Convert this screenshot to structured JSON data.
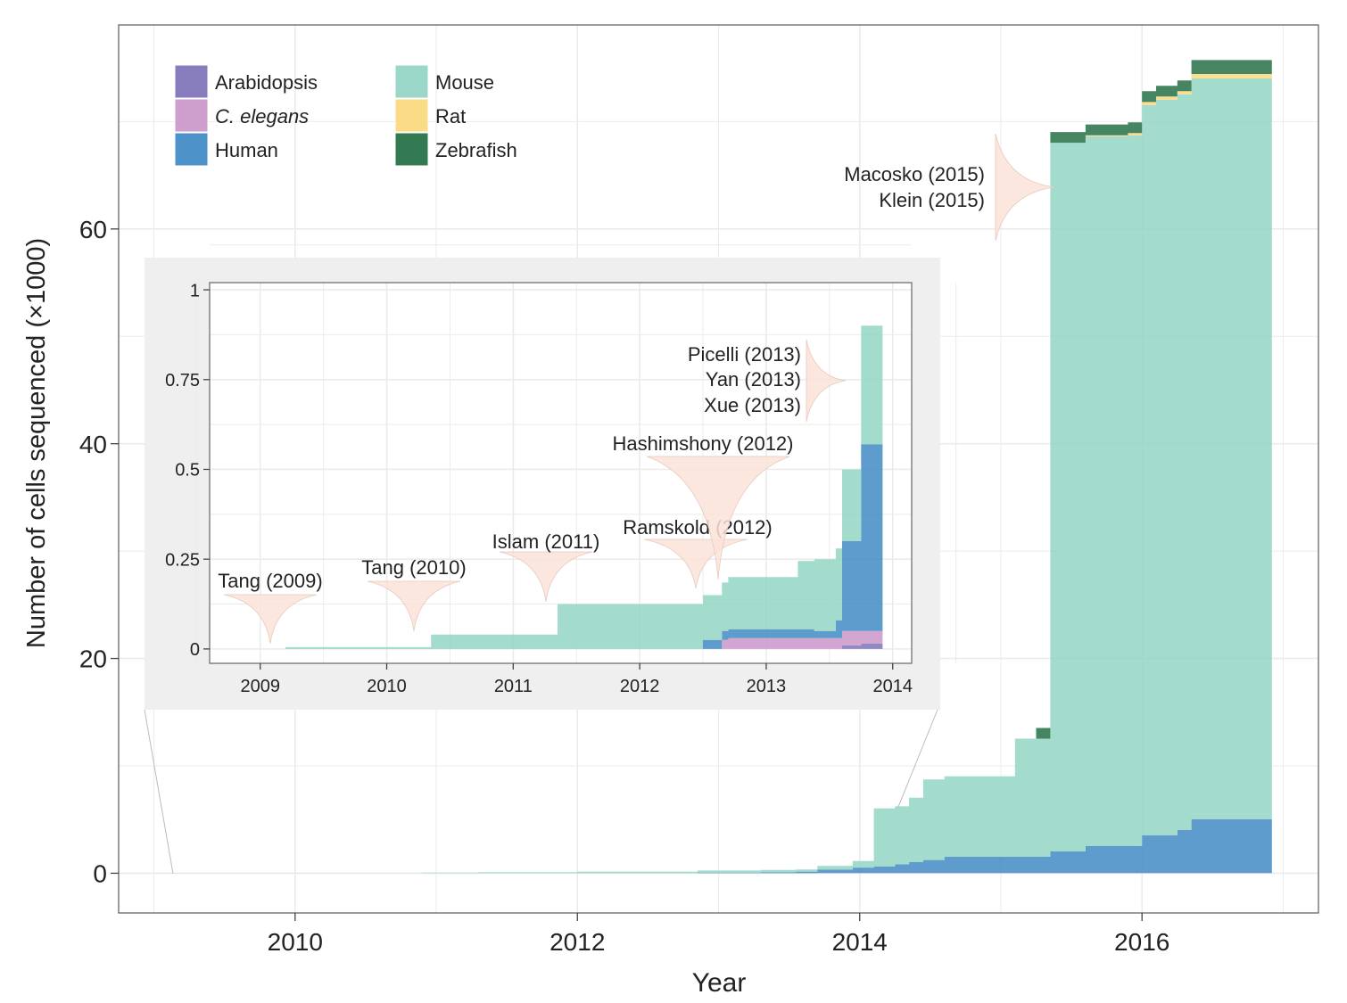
{
  "chart_data": [
    {
      "type": "area",
      "stacked": true,
      "xlabel": "Year",
      "ylabel": "Number of cells sequenced (×1000)",
      "xlim": [
        2008.75,
        2017.25
      ],
      "ylim": [
        -3.7,
        79
      ],
      "xticks": [
        2010,
        2012,
        2014,
        2016
      ],
      "xtick_labels": [
        "2010",
        "2012",
        "2014",
        "2016"
      ],
      "yticks": [
        0,
        20,
        40,
        60
      ],
      "ytick_labels": [
        "0",
        "20",
        "40",
        "60"
      ],
      "grid": true,
      "legend_position": "top-left",
      "step": true,
      "x": [
        2009.0,
        2009.6,
        2010.0,
        2010.4,
        2010.9,
        2011.3,
        2011.7,
        2012.0,
        2012.5,
        2012.85,
        2013.0,
        2013.3,
        2013.55,
        2013.7,
        2013.95,
        2014.1,
        2014.25,
        2014.35,
        2014.45,
        2014.6,
        2014.75,
        2015.0,
        2015.1,
        2015.25,
        2015.35,
        2015.6,
        2015.75,
        2015.9,
        2016.0,
        2016.1,
        2016.25,
        2016.35,
        2016.92
      ],
      "series": [
        {
          "name": "Arabidopsis",
          "color": "#7b6fb5",
          "values": [
            0,
            0,
            0,
            0,
            0,
            0,
            0,
            0,
            0,
            0,
            0,
            0,
            0,
            0.01,
            0.01,
            0.01,
            0.01,
            0.01,
            0.01,
            0.01,
            0.01,
            0.01,
            0.01,
            0.01,
            0.01,
            0.01,
            0.01,
            0.01,
            0.01,
            0.01,
            0.01,
            0.01,
            0.01
          ]
        },
        {
          "name": "C. elegans",
          "color": "#c993c8",
          "values": [
            0,
            0,
            0,
            0,
            0,
            0,
            0,
            0,
            0,
            0,
            0,
            0,
            0,
            0.02,
            0.02,
            0.02,
            0.02,
            0.02,
            0.02,
            0.02,
            0.02,
            0.02,
            0.02,
            0.02,
            0.02,
            0.02,
            0.02,
            0.02,
            0.02,
            0.02,
            0.02,
            0.02,
            0.02
          ]
        },
        {
          "name": "Human",
          "color": "#3a86c2",
          "values": [
            0,
            0,
            0,
            0,
            0,
            0,
            0,
            0,
            0,
            0.05,
            0.05,
            0.1,
            0.15,
            0.3,
            0.5,
            0.6,
            0.8,
            1.0,
            1.2,
            1.5,
            1.5,
            1.5,
            1.5,
            1.5,
            2.0,
            2.5,
            2.5,
            2.5,
            3.5,
            3.5,
            4.0,
            5.0,
            5.0
          ]
        },
        {
          "name": "Mouse",
          "color": "#8fd3c2",
          "values": [
            0.01,
            0.01,
            0.02,
            0.02,
            0.05,
            0.1,
            0.1,
            0.15,
            0.15,
            0.2,
            0.2,
            0.2,
            0.2,
            0.35,
            0.6,
            5.4,
            5.4,
            6.0,
            7.5,
            7.5,
            7.5,
            7.5,
            11.0,
            11.0,
            66.0,
            66.1,
            66.1,
            66.2,
            68.0,
            68.5,
            68.5,
            69.0,
            69.0
          ]
        },
        {
          "name": "Rat",
          "color": "#f9d779",
          "values": [
            0,
            0,
            0,
            0,
            0,
            0,
            0,
            0,
            0,
            0,
            0,
            0,
            0,
            0,
            0,
            0,
            0,
            0,
            0,
            0,
            0,
            0,
            0,
            0,
            0,
            0.1,
            0.1,
            0.2,
            0.3,
            0.3,
            0.3,
            0.4,
            0.4
          ]
        },
        {
          "name": "Zebrafish",
          "color": "#1d6a3e",
          "values": [
            0,
            0,
            0,
            0,
            0,
            0,
            0,
            0,
            0,
            0,
            0,
            0,
            0,
            0,
            0,
            0,
            0,
            0,
            0,
            0,
            0,
            0,
            0,
            1.0,
            1.0,
            1.0,
            1.0,
            1.0,
            1.0,
            1.0,
            1.0,
            1.3,
            1.3
          ]
        }
      ],
      "annotations": [
        {
          "label": "Macosko (2015)",
          "x": 2015.3
        },
        {
          "label": "Klein (2015)",
          "x": 2015.3
        }
      ]
    },
    {
      "type": "area",
      "stacked": true,
      "inset": true,
      "xlim": [
        2008.6,
        2014.15
      ],
      "ylim": [
        -0.04,
        1.02
      ],
      "xticks": [
        2009,
        2010,
        2011,
        2012,
        2013,
        2014
      ],
      "xtick_labels": [
        "2009",
        "2010",
        "2011",
        "2012",
        "2013",
        "2014"
      ],
      "yticks": [
        0,
        0.25,
        0.5,
        0.75,
        1
      ],
      "ytick_labels": [
        "0",
        "0.25",
        "0.5",
        "0.75",
        "1"
      ],
      "grid": true,
      "step": true,
      "x": [
        2009.2,
        2010.25,
        2010.35,
        2011.25,
        2011.35,
        2012.4,
        2012.5,
        2012.65,
        2012.7,
        2013.15,
        2013.25,
        2013.38,
        2013.5,
        2013.55,
        2013.6,
        2013.75,
        2013.92
      ],
      "series": [
        {
          "name": "Arabidopsis",
          "values": [
            0,
            0,
            0,
            0,
            0,
            0,
            0,
            0,
            0,
            0,
            0,
            0,
            0,
            0,
            0.01,
            0.015,
            0.015
          ]
        },
        {
          "name": "C. elegans",
          "values": [
            0,
            0,
            0,
            0,
            0,
            0,
            0,
            0.025,
            0.03,
            0.03,
            0.03,
            0.03,
            0.03,
            0.03,
            0.04,
            0.035,
            0.035
          ]
        },
        {
          "name": "Human",
          "values": [
            0,
            0,
            0,
            0,
            0,
            0,
            0.025,
            0.025,
            0.025,
            0.025,
            0.025,
            0.02,
            0.02,
            0.05,
            0.25,
            0.52,
            0.47
          ]
        },
        {
          "name": "Mouse",
          "values": [
            0.005,
            0.005,
            0.04,
            0.04,
            0.125,
            0.125,
            0.125,
            0.135,
            0.145,
            0.145,
            0.19,
            0.2,
            0.2,
            0.2,
            0.2,
            0.33,
            0.43
          ]
        },
        {
          "name": "Rat",
          "values": [
            0,
            0,
            0,
            0,
            0,
            0,
            0,
            0,
            0,
            0,
            0,
            0,
            0,
            0,
            0,
            0,
            0
          ]
        },
        {
          "name": "Zebrafish",
          "values": [
            0,
            0,
            0,
            0,
            0,
            0,
            0,
            0,
            0,
            0,
            0,
            0,
            0,
            0,
            0,
            0,
            0
          ]
        }
      ],
      "annotations": [
        {
          "label": "Tang (2009)",
          "x": 2009.2
        },
        {
          "label": "Tang (2010)",
          "x": 2010.3
        },
        {
          "label": "Islam (2011)",
          "x": 2011.35
        },
        {
          "label": "Ramskold (2012)",
          "x": 2012.65
        },
        {
          "label": "Hashimshony (2012)",
          "x": 2012.6
        },
        {
          "label": "Picelli (2013)",
          "x": 2013.6
        },
        {
          "label": "Yan (2013)",
          "x": 2013.6
        },
        {
          "label": "Xue (2013)",
          "x": 2013.6
        }
      ]
    }
  ],
  "legend": [
    {
      "label": "Arabidopsis",
      "color": "#7b6fb5",
      "italic": false
    },
    {
      "label": "C. elegans",
      "color": "#c993c8",
      "italic": true
    },
    {
      "label": "Human",
      "color": "#3a86c2",
      "italic": false
    },
    {
      "label": "Mouse",
      "color": "#8fd3c2",
      "italic": false
    },
    {
      "label": "Rat",
      "color": "#f9d779",
      "italic": false
    },
    {
      "label": "Zebrafish",
      "color": "#1d6a3e",
      "italic": false
    }
  ],
  "colors": {
    "panel_border": "#666666",
    "grid": "#ebebeb",
    "inset_background": "#efefef",
    "funnel_fill": "#fbe3d9",
    "funnel_stroke": "#e8c9bd"
  }
}
